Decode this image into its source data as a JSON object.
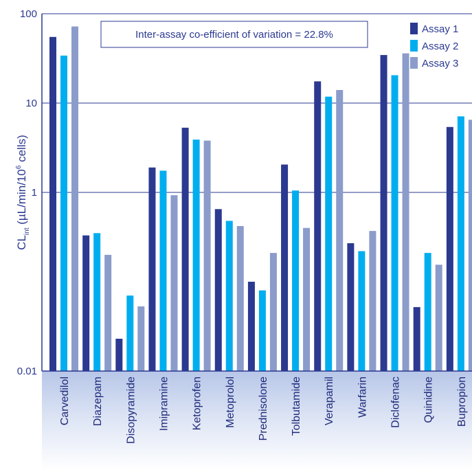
{
  "chart_data": {
    "type": "bar",
    "y_scale": "log",
    "ylim": [
      0.01,
      100
    ],
    "y_ticks": [
      "0.01",
      "1",
      "10",
      "100"
    ],
    "ylabel": "CLint (µL/min/10⁶ cells)",
    "ylabel_main": "CL",
    "ylabel_sub": "int",
    "ylabel_rest": " (µL/min/10",
    "ylabel_sup": "6",
    "ylabel_end": " cells)",
    "annotation": "Inter-assay co-efficient of variation = 22.8%",
    "legend_position": "top-right",
    "grid": "horizontal",
    "categories": [
      "Carvedilol",
      "Diazepam",
      "Disopyramide",
      "Imipramine",
      "Ketoprofen",
      "Metoprolol",
      "Prednisolone",
      "Tolbutamide",
      "Verapamil",
      "Warfarin",
      "Diclofenac",
      "Quinidine",
      "Bupropion"
    ],
    "series": [
      {
        "name": "Assay 1",
        "color": "#2b3990",
        "values": [
          55,
          0.33,
          0.023,
          1.9,
          5.3,
          0.65,
          0.1,
          2.05,
          17.5,
          0.27,
          34.5,
          0.052,
          5.4
        ]
      },
      {
        "name": "Assay 2",
        "color": "#00aeef",
        "values": [
          34,
          0.35,
          0.07,
          1.75,
          3.9,
          0.48,
          0.08,
          1.05,
          11.8,
          0.22,
          20.5,
          0.21,
          7.1
        ]
      },
      {
        "name": "Assay 3",
        "color": "#8b9ccb",
        "values": [
          72,
          0.2,
          0.053,
          0.93,
          3.8,
          0.42,
          0.21,
          0.4,
          14,
          0.37,
          36,
          0.155,
          6.5
        ]
      }
    ]
  }
}
